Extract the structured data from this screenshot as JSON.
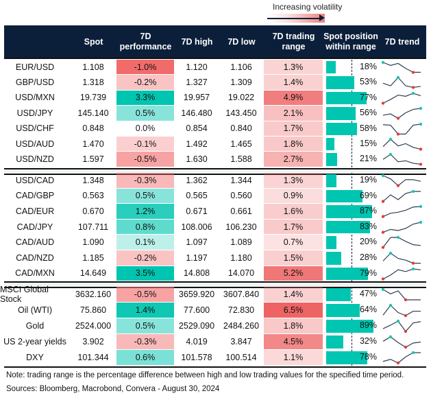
{
  "legend": {
    "label": "Increasing volatility"
  },
  "colors": {
    "header": "#0b1f3a",
    "teal": "#00c5b0",
    "red": "#f26b6b",
    "spark_line": "#2c3e50",
    "spark_max": "#1cc6b0",
    "spark_min": "#e0403a"
  },
  "chart_data": {
    "type": "table",
    "columns": [
      "",
      "Spot",
      "7D performance",
      "7D high",
      "7D low",
      "7D trading range",
      "Spot position within range",
      "7D trend"
    ],
    "sections": [
      [
        {
          "name": "EUR/USD",
          "spot": "1.108",
          "perf": "-1.0%",
          "high": "1.120",
          "low": "1.106",
          "range": "1.3%",
          "position": "18%",
          "trend": [
            1,
            0.7,
            0.9,
            0.4,
            0,
            0
          ]
        },
        {
          "name": "GBP/USD",
          "spot": "1.318",
          "perf": "-0.2%",
          "high": "1.327",
          "low": "1.309",
          "range": "1.4%",
          "position": "53%",
          "trend": [
            0.42,
            0.16,
            1,
            0.16,
            0,
            0.1
          ]
        },
        {
          "name": "USD/MXN",
          "spot": "19.739",
          "perf": "3.3%",
          "high": "19.957",
          "low": "19.022",
          "range": "4.9%",
          "position": "77%",
          "trend": [
            0,
            0.38,
            0.82,
            0.7,
            1,
            0.75
          ]
        },
        {
          "name": "USD/JPY",
          "spot": "145.140",
          "perf": "0.5%",
          "high": "146.480",
          "low": "143.450",
          "range": "2.1%",
          "position": "56%",
          "trend": [
            0.31,
            0.44,
            0,
            0.56,
            0.9,
            1
          ]
        },
        {
          "name": "USD/CHF",
          "spot": "0.848",
          "perf": "0.0%",
          "high": "0.854",
          "low": "0.840",
          "range": "1.7%",
          "position": "58%",
          "trend": [
            0.95,
            0.9,
            0,
            0,
            0.9,
            1
          ]
        },
        {
          "name": "USD/AUD",
          "spot": "1.470",
          "perf": "-0.1%",
          "high": "1.492",
          "low": "1.465",
          "range": "1.8%",
          "position": "15%",
          "trend": [
            0.26,
            1,
            0.33,
            0.56,
            0.18,
            0
          ]
        },
        {
          "name": "USD/NZD",
          "spot": "1.597",
          "perf": "-0.5%",
          "high": "1.630",
          "low": "1.588",
          "range": "2.7%",
          "position": "21%",
          "trend": [
            0.5,
            1,
            0.25,
            0.35,
            0.1,
            0
          ]
        }
      ],
      [
        {
          "name": "USD/CAD",
          "spot": "1.348",
          "perf": "-0.3%",
          "high": "1.362",
          "low": "1.344",
          "range": "1.3%",
          "position": "19%",
          "trend": [
            1,
            0.68,
            0,
            0.6,
            0.6,
            0.43
          ]
        },
        {
          "name": "CAD/GBP",
          "spot": "0.563",
          "perf": "0.5%",
          "high": "0.565",
          "low": "0.560",
          "range": "0.9%",
          "position": "69%",
          "trend": [
            0,
            0.66,
            0.18,
            0.79,
            1,
            1
          ]
        },
        {
          "name": "CAD/EUR",
          "spot": "0.670",
          "perf": "1.2%",
          "high": "0.671",
          "low": "0.661",
          "range": "1.6%",
          "position": "87%",
          "trend": [
            0,
            0.33,
            0.43,
            0.63,
            0.95,
            1
          ]
        },
        {
          "name": "CAD/JPY",
          "spot": "107.711",
          "perf": "0.8%",
          "high": "108.006",
          "low": "106.230",
          "range": "1.7%",
          "position": "83%",
          "trend": [
            0,
            0.29,
            0.18,
            0.39,
            0.82,
            1
          ]
        },
        {
          "name": "CAD/AUD",
          "spot": "1.090",
          "perf": "0.1%",
          "high": "1.097",
          "low": "1.089",
          "range": "0.7%",
          "position": "20%",
          "trend": [
            0,
            0.99,
            1,
            0.6,
            0.27,
            0.19
          ]
        },
        {
          "name": "CAD/NZD",
          "spot": "1.185",
          "perf": "-0.2%",
          "high": "1.197",
          "low": "1.180",
          "range": "1.5%",
          "position": "28%",
          "trend": [
            0.22,
            1,
            0.47,
            0.3,
            0,
            0
          ]
        },
        {
          "name": "CAD/MXN",
          "spot": "14.649",
          "perf": "3.5%",
          "high": "14.808",
          "low": "14.070",
          "range": "5.2%",
          "position": "79%",
          "trend": [
            0,
            0.39,
            0.92,
            0.74,
            1,
            0.92
          ]
        }
      ],
      [
        {
          "name": "MSCI Global Stock",
          "spot": "3632.160",
          "perf": "-0.5%",
          "high": "3659.920",
          "low": "3607.840",
          "range": "1.4%",
          "position": "47%",
          "trend": [
            1,
            0.58,
            0.87,
            0,
            0,
            0
          ]
        },
        {
          "name": "Oil (WTI)",
          "spot": "75.860",
          "perf": "1.4%",
          "high": "77.600",
          "low": "72.830",
          "range": "6.5%",
          "position": "64%",
          "trend": [
            0.05,
            1,
            0.3,
            0,
            0.43,
            0.43
          ]
        },
        {
          "name": "Gold",
          "spot": "2524.000",
          "perf": "0.5%",
          "high": "2529.090",
          "low": "2484.260",
          "range": "1.8%",
          "position": "89%",
          "trend": [
            0.26,
            0.61,
            1,
            0,
            0.82,
            0.95
          ]
        },
        {
          "name": "US 2-year yields",
          "spot": "3.902",
          "perf": "-0.3%",
          "high": "4.019",
          "low": "3.847",
          "range": "4.5%",
          "position": "32%",
          "trend": [
            0.57,
            1,
            0.45,
            0,
            0.4,
            0.5
          ]
        },
        {
          "name": "DXY",
          "spot": "101.344",
          "perf": "0.6%",
          "high": "101.578",
          "low": "100.514",
          "range": "1.1%",
          "position": "78%",
          "trend": [
            0.15,
            0.35,
            0,
            0.59,
            1,
            1
          ]
        }
      ]
    ]
  },
  "footer": {
    "note": "Note: trading range is the percentage difference between high and low trading values for the specified time period.",
    "sources": "Sources: Bloomberg, Macrobond, Convera - August 30, 2024"
  }
}
